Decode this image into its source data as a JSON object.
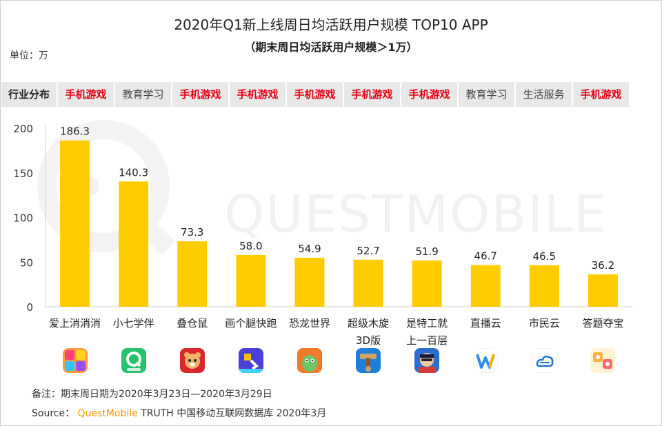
{
  "title": "2020年Q1新上线周日均活跃用户规模 TOP10 APP",
  "subtitle": "（期末周日均活跃用户规模＞1万）",
  "unit_label": "单位：万",
  "watermark": "QUESTMOBILE",
  "industry_row": {
    "header": "行业分布",
    "categories": [
      "手机游戏",
      "教育学习",
      "手机游戏",
      "手机游戏",
      "手机游戏",
      "手机游戏",
      "手机游戏",
      "教育学习",
      "生活服务",
      "手机游戏"
    ]
  },
  "colors": {
    "bar": "#ffcc00",
    "highlight_text": "#e60012",
    "source_brand": "#f29600"
  },
  "chart_data": {
    "type": "bar",
    "categories": [
      "爱上消消消",
      "小七学伴",
      "叠仓鼠",
      "画个腿快跑",
      "恐龙世界",
      "超级木旋3D版",
      "是特工就上一百层",
      "直播云",
      "市民云",
      "答题夺宝"
    ],
    "category_lines": [
      [
        "爱上消消消"
      ],
      [
        "小七学伴"
      ],
      [
        "叠仓鼠"
      ],
      [
        "画个腿快跑"
      ],
      [
        "恐龙世界"
      ],
      [
        "超级木旋",
        "3D版"
      ],
      [
        "是特工就",
        "上一百层"
      ],
      [
        "直播云"
      ],
      [
        "市民云"
      ],
      [
        "答题夺宝"
      ]
    ],
    "values": [
      186.3,
      140.3,
      73.3,
      58.0,
      54.9,
      52.7,
      51.9,
      46.7,
      46.5,
      36.2
    ],
    "value_labels": [
      "186.3",
      "140.3",
      "73.3",
      "58.0",
      "54.9",
      "52.7",
      "51.9",
      "46.7",
      "46.5",
      "36.2"
    ],
    "yticks": [
      "0",
      "50",
      "100",
      "150",
      "200"
    ],
    "ylim": [
      0,
      200
    ],
    "grid": false
  },
  "app_icons": [
    "puzzle-game-icon",
    "q-letter-icon",
    "hamster-icon",
    "runner-legs-icon",
    "dinosaur-icon",
    "wood-spin-icon",
    "agent-icon",
    "w-letter-icon",
    "city-cloud-icon",
    "quiz-treasure-icon"
  ],
  "note": "备注：期末周日期为2020年3月23日—2020年3月29日",
  "source": {
    "prefix": "Source：",
    "brand": "QuestMobile",
    "text": "TRUTH 中国移动互联网数据库 2020年3月"
  }
}
